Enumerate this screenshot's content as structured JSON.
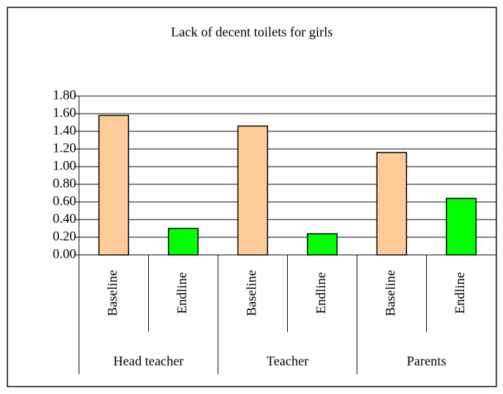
{
  "chart_data": {
    "type": "bar",
    "title": "Lack of decent toilets for girls",
    "categories": [
      "Baseline",
      "Endline",
      "Baseline",
      "Endline",
      "Baseline",
      "Endline"
    ],
    "groups": [
      "Head teacher",
      "Teacher",
      "Parents"
    ],
    "values": [
      1.58,
      0.3,
      1.46,
      0.24,
      1.16,
      0.64
    ],
    "colors": [
      "#ffcc99",
      "#00ff00"
    ],
    "ylim": [
      0,
      1.8
    ],
    "yticks": [
      {
        "value": 0,
        "label": "0.00"
      },
      {
        "value": 0.2,
        "label": "0.20"
      },
      {
        "value": 0.4,
        "label": "0.40"
      },
      {
        "value": 0.6,
        "label": "0.60"
      },
      {
        "value": 0.8,
        "label": "0.80"
      },
      {
        "value": 1.0,
        "label": "1.00"
      },
      {
        "value": 1.2,
        "label": "1.20"
      },
      {
        "value": 1.4,
        "label": "1.40"
      },
      {
        "value": 1.6,
        "label": "1.60"
      },
      {
        "value": 1.8,
        "label": "1.80"
      }
    ],
    "grid": true
  }
}
